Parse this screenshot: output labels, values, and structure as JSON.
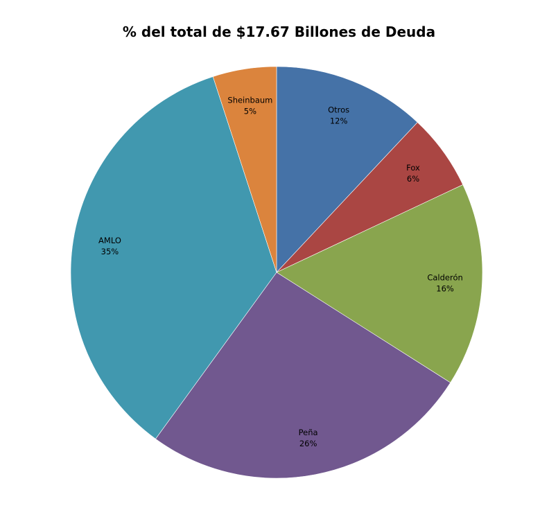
{
  "chart_data": {
    "type": "pie",
    "title": "% del total de $17.67 Billones de Deuda",
    "start_angle_deg": 0,
    "direction": "clockwise",
    "slices": [
      {
        "label": "Otros",
        "pct_label": "12%",
        "value": 12,
        "color": "#4572A7"
      },
      {
        "label": "Fox",
        "pct_label": "6%",
        "value": 6,
        "color": "#AA4643"
      },
      {
        "label": "Calderón",
        "pct_label": "16%",
        "value": 16,
        "color": "#89A54E"
      },
      {
        "label": "Peña",
        "pct_label": "26%",
        "value": 26,
        "color": "#71588F"
      },
      {
        "label": "AMLO",
        "pct_label": "35%",
        "value": 35,
        "color": "#4198AF"
      },
      {
        "label": "Sheinbaum",
        "pct_label": "5%",
        "value": 5,
        "color": "#DB843D"
      }
    ]
  }
}
